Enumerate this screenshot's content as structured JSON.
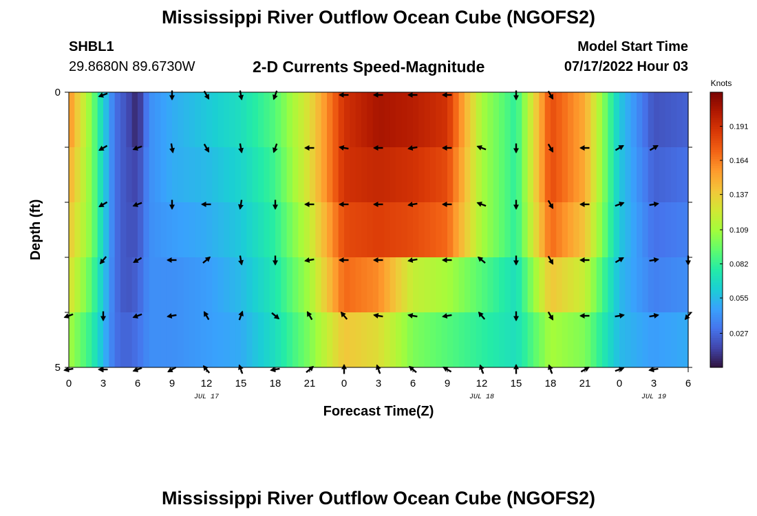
{
  "header": {
    "title": "Mississippi River Outflow Ocean Cube (NGOFS2)",
    "station": "SHBL1",
    "coordinates": "29.8680N  89.6730W",
    "subtitle": "2-D Currents Speed-Magnitude",
    "start_label": "Model Start Time",
    "start_value": "07/17/2022 Hour 03"
  },
  "footer": {
    "title": "Mississippi River Outflow Ocean Cube (NGOFS2)"
  },
  "chart_data": {
    "type": "heatmap",
    "title": "2-D Currents Speed-Magnitude",
    "xlabel": "Forecast Time(Z)",
    "ylabel": "Depth (ft)",
    "x_range_hours": [
      0,
      54
    ],
    "y_range_ft": [
      0,
      5
    ],
    "x_ticks": [
      {
        "h": 0,
        "label": "0"
      },
      {
        "h": 3,
        "label": "3"
      },
      {
        "h": 6,
        "label": "6"
      },
      {
        "h": 9,
        "label": "9"
      },
      {
        "h": 12,
        "label": "12"
      },
      {
        "h": 15,
        "label": "15"
      },
      {
        "h": 18,
        "label": "18"
      },
      {
        "h": 21,
        "label": "21"
      },
      {
        "h": 24,
        "label": "0"
      },
      {
        "h": 27,
        "label": "3"
      },
      {
        "h": 30,
        "label": "6"
      },
      {
        "h": 33,
        "label": "9"
      },
      {
        "h": 36,
        "label": "12"
      },
      {
        "h": 39,
        "label": "15"
      },
      {
        "h": 42,
        "label": "18"
      },
      {
        "h": 45,
        "label": "21"
      },
      {
        "h": 48,
        "label": "0"
      },
      {
        "h": 51,
        "label": "3"
      },
      {
        "h": 54,
        "label": "6"
      }
    ],
    "date_labels": [
      {
        "h": 12,
        "label": "JUL 17"
      },
      {
        "h": 36,
        "label": "JUL 18"
      },
      {
        "h": 51,
        "label": "JUL 19"
      }
    ],
    "y_ticks": [
      {
        "ft": 0,
        "label": "0"
      },
      {
        "ft": 5,
        "label": "5"
      }
    ],
    "layers_depth_ft": [
      0,
      1,
      2,
      3,
      4,
      5
    ],
    "speed_times_h": [
      0,
      2,
      4,
      5,
      6,
      7,
      9,
      12,
      15,
      18,
      21,
      24,
      27,
      30,
      33,
      36,
      39,
      42,
      45,
      48,
      51,
      54
    ],
    "speed_by_layer": [
      [
        0.16,
        0.1,
        0.03,
        0.02,
        0.005,
        0.04,
        0.05,
        0.06,
        0.07,
        0.09,
        0.13,
        0.19,
        0.205,
        0.2,
        0.19,
        0.11,
        0.08,
        0.18,
        0.15,
        0.06,
        0.02,
        0.025
      ],
      [
        0.15,
        0.1,
        0.03,
        0.02,
        0.015,
        0.04,
        0.05,
        0.055,
        0.065,
        0.085,
        0.13,
        0.19,
        0.195,
        0.19,
        0.18,
        0.11,
        0.08,
        0.18,
        0.15,
        0.06,
        0.025,
        0.03
      ],
      [
        0.14,
        0.1,
        0.03,
        0.02,
        0.02,
        0.04,
        0.045,
        0.05,
        0.06,
        0.08,
        0.12,
        0.18,
        0.185,
        0.18,
        0.17,
        0.11,
        0.08,
        0.17,
        0.14,
        0.06,
        0.03,
        0.035
      ],
      [
        0.13,
        0.09,
        0.03,
        0.02,
        0.025,
        0.04,
        0.04,
        0.045,
        0.055,
        0.075,
        0.11,
        0.17,
        0.16,
        0.12,
        0.11,
        0.09,
        0.07,
        0.14,
        0.12,
        0.055,
        0.035,
        0.04
      ],
      [
        0.11,
        0.08,
        0.03,
        0.025,
        0.03,
        0.04,
        0.04,
        0.045,
        0.05,
        0.07,
        0.1,
        0.14,
        0.13,
        0.1,
        0.09,
        0.08,
        0.07,
        0.11,
        0.1,
        0.055,
        0.045,
        0.05
      ],
      [
        0.09,
        0.07,
        0.04,
        0.03,
        0.04,
        0.045,
        0.045,
        0.05,
        0.055,
        0.07,
        0.09,
        0.11,
        0.11,
        0.09,
        0.08,
        0.075,
        0.07,
        0.09,
        0.085,
        0.06,
        0.055,
        0.06
      ]
    ],
    "arrow_times_h": [
      0,
      3,
      6,
      9,
      12,
      15,
      18,
      21,
      24,
      27,
      30,
      33,
      36,
      39,
      42,
      45,
      48,
      51,
      54
    ],
    "arrow_angles_deg": [
      [
        null,
        200,
        null,
        270,
        300,
        280,
        250,
        null,
        180,
        180,
        180,
        180,
        null,
        270,
        300,
        null,
        null,
        null,
        null
      ],
      [
        null,
        210,
        200,
        280,
        300,
        280,
        250,
        180,
        170,
        180,
        190,
        180,
        160,
        270,
        300,
        180,
        30,
        30,
        null
      ],
      [
        null,
        210,
        200,
        270,
        180,
        260,
        270,
        180,
        180,
        180,
        190,
        180,
        160,
        270,
        300,
        180,
        20,
        10,
        null
      ],
      [
        null,
        230,
        210,
        180,
        40,
        280,
        270,
        190,
        180,
        180,
        190,
        180,
        140,
        270,
        300,
        180,
        30,
        10,
        270
      ],
      [
        200,
        270,
        200,
        190,
        120,
        70,
        320,
        120,
        130,
        170,
        170,
        190,
        130,
        270,
        300,
        180,
        10,
        10,
        230
      ],
      [
        190,
        180,
        200,
        210,
        130,
        110,
        190,
        40,
        90,
        110,
        140,
        150,
        110,
        90,
        110,
        30,
        20,
        190,
        null
      ]
    ],
    "colorbar": {
      "unit": "Knots",
      "range": [
        0.0,
        0.218
      ],
      "ticks": [
        0.027,
        0.055,
        0.082,
        0.109,
        0.137,
        0.164,
        0.191
      ],
      "tick_labels": [
        "0.027",
        "0.055",
        "0.082",
        "0.109",
        "0.137",
        "0.164",
        "0.191"
      ],
      "colors": [
        "#30123b",
        "#4145ab",
        "#4675ed",
        "#39a2fc",
        "#1bcfd4",
        "#24eca6",
        "#61fc6c",
        "#a4fc3b",
        "#d1e834",
        "#f3c63a",
        "#fe9b2d",
        "#f36315",
        "#d93806",
        "#b11901",
        "#7a0402"
      ]
    }
  }
}
